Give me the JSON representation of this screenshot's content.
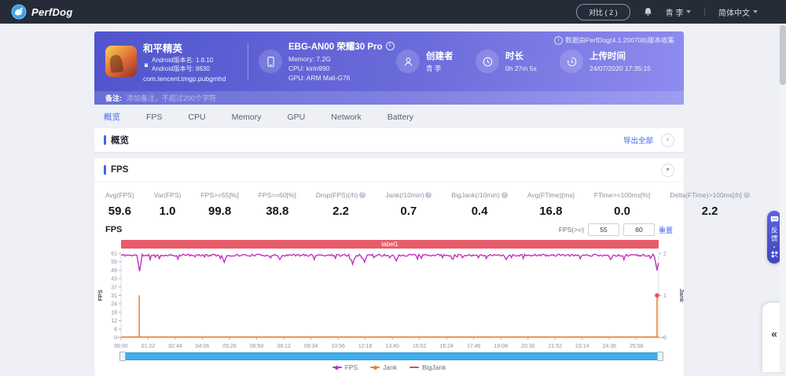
{
  "navbar": {
    "brand": "PerfDog",
    "compare_button": "对比 ( 2 )",
    "user": "青 李",
    "language": "简体中文"
  },
  "banner": {
    "game": {
      "title": "和平精英",
      "version_name": "Android版本名: 1.8.10",
      "version_code": "Android版本号: 8630",
      "package": "com.tencent.tmgp.pubgmhd"
    },
    "device": {
      "name": "EBG-AN00 荣耀30 Pro",
      "memory": "Memory: 7.2G",
      "cpu": "CPU: kirin990",
      "gpu": "GPU: ARM Mali-G76"
    },
    "creator": {
      "label": "创建者",
      "value": "青 李"
    },
    "duration": {
      "label": "时长",
      "value": "0h 27m 5s"
    },
    "upload": {
      "label": "上传时间",
      "value": "24/07/2020 17:35:15"
    },
    "collected_by": "数据由PerfDog(4.1.200708)版本收集",
    "note_label": "备注:",
    "note_placeholder": "添加备注，不超过200个字符"
  },
  "tabs": [
    {
      "label": "概览",
      "active": true
    },
    {
      "label": "FPS",
      "active": false
    },
    {
      "label": "CPU",
      "active": false
    },
    {
      "label": "Memory",
      "active": false
    },
    {
      "label": "GPU",
      "active": false
    },
    {
      "label": "Network",
      "active": false
    },
    {
      "label": "Battery",
      "active": false
    }
  ],
  "overview": {
    "title": "概览",
    "export_all": "导出全部"
  },
  "fps_section": {
    "title": "FPS",
    "stats": [
      {
        "label": "Avg(FPS)",
        "value": "59.6",
        "info": false
      },
      {
        "label": "Var(FPS)",
        "value": "1.0",
        "info": false
      },
      {
        "label": "FPS>=55[%]",
        "value": "99.8",
        "info": false
      },
      {
        "label": "FPS>=60[%]",
        "value": "38.8",
        "info": false
      },
      {
        "label": "Drop(FPS)(/h)",
        "value": "2.2",
        "info": true
      },
      {
        "label": "Jank(/10min)",
        "value": "0.7",
        "info": true
      },
      {
        "label": "BigJank(/10min)",
        "value": "0.4",
        "info": true
      },
      {
        "label": "Avg(FTime)[ms]",
        "value": "16.8",
        "info": false
      },
      {
        "label": "FTime>=100ms[%]",
        "value": "0.0",
        "info": false
      },
      {
        "label": "Delta(FTime)>100ms[/h]",
        "value": "2.2",
        "info": true
      }
    ],
    "chart_title": "FPS",
    "filter": {
      "label": "FPS(>=)",
      "low": "55",
      "high": "60",
      "reset": "重置"
    }
  },
  "chart_data": {
    "type": "line",
    "title": "FPS",
    "band_label": "label1",
    "band_color": "#e85d6b",
    "ylabel_left": "FPS",
    "ylabel_right": "Jank",
    "left_ticks": [
      61,
      55,
      49,
      43,
      37,
      31,
      24,
      18,
      12,
      6,
      0
    ],
    "left_max": 61,
    "right_ticks": [
      2,
      1,
      0
    ],
    "right_max": 2,
    "x_ticks": [
      "00:00",
      "01:22",
      "02:44",
      "04:06",
      "05:28",
      "06:50",
      "08:12",
      "09:34",
      "10:56",
      "12:18",
      "13:40",
      "15:02",
      "16:24",
      "17:46",
      "19:08",
      "20:30",
      "21:52",
      "23:14",
      "24:36",
      "25:58"
    ],
    "x_tick_interval_s": 82,
    "x_max_s": 1625,
    "grid": false,
    "legend_position": "bottom",
    "fps_baseline": 59.6,
    "fps_noise": 1.5,
    "fps_dips": [
      {
        "t": 55,
        "fps": 48
      },
      {
        "t": 310,
        "fps": 54.5
      },
      {
        "t": 480,
        "fps": 56.5
      },
      {
        "t": 700,
        "fps": 53
      },
      {
        "t": 735,
        "fps": 54.5
      },
      {
        "t": 830,
        "fps": 55.5
      },
      {
        "t": 1165,
        "fps": 56.5
      },
      {
        "t": 1480,
        "fps": 56.5
      },
      {
        "t": 1618,
        "fps": 48.5
      }
    ],
    "jank_events": [
      {
        "t": 55,
        "value": 1
      },
      {
        "t": 1620,
        "value": 1
      }
    ],
    "bigjank_events": [
      {
        "t": 1620,
        "value": 1
      }
    ],
    "series_colors": {
      "fps": "#c032c0",
      "jank": "#ee7e32",
      "bigjank": "#e24b4b"
    },
    "legend": [
      {
        "label": "FPS",
        "color": "#c032c0",
        "marker": "dot-line"
      },
      {
        "label": "Jank",
        "color": "#ee7e32",
        "marker": "dot-line"
      },
      {
        "label": "BigJank",
        "color": "#e24b4b",
        "marker": "line"
      }
    ]
  },
  "widgets": {
    "feedback_text": "反馈",
    "panel_toggle_icon": "«",
    "overview_collapse_icon": "‹",
    "fps_collapse_icon": "▾"
  }
}
